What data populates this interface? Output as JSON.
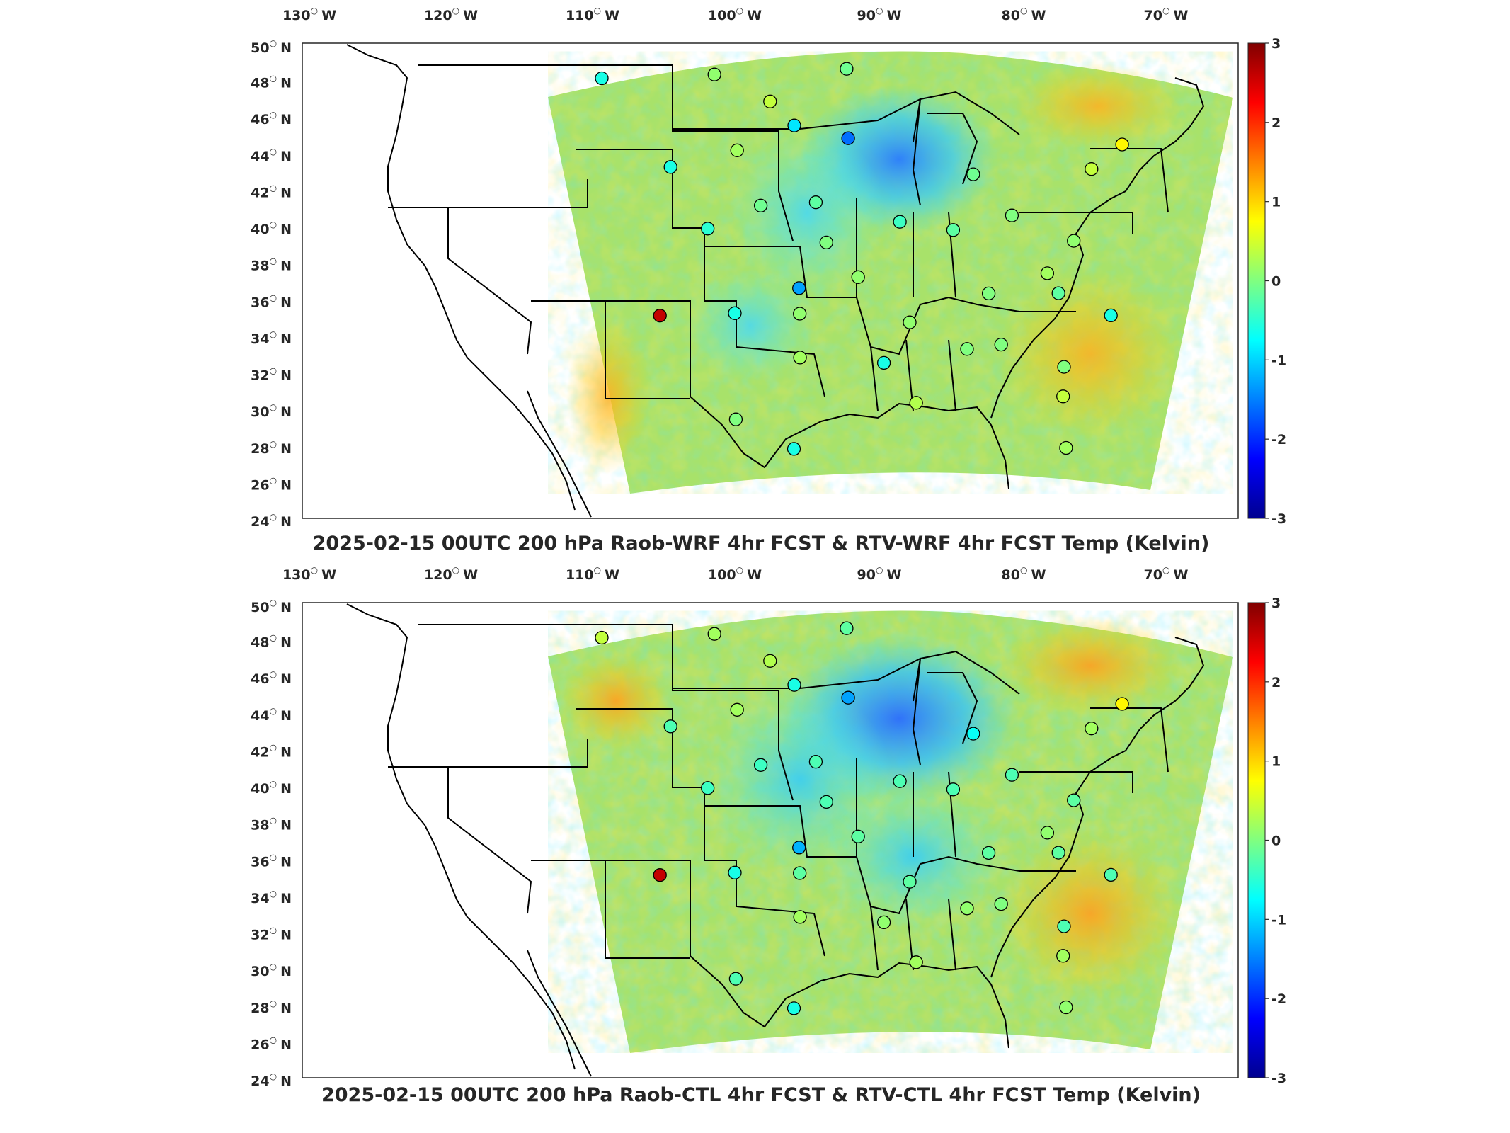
{
  "panels": [
    {
      "id": "top",
      "title": "2025-02-15 00UTC 200 hPa Raob-WRF 4hr FCST & RTV-WRF 4hr FCST Temp (Kelvin)"
    },
    {
      "id": "bottom",
      "title": "2025-02-15 00UTC 200 hPa Raob-CTL 4hr FCST & RTV-CTL 4hr FCST Temp (Kelvin)"
    }
  ],
  "axes": {
    "lon_ticks": [
      {
        "deg": "130",
        "hemi": "W"
      },
      {
        "deg": "120",
        "hemi": "W"
      },
      {
        "deg": "110",
        "hemi": "W"
      },
      {
        "deg": "100",
        "hemi": "W"
      },
      {
        "deg": "90",
        "hemi": "W"
      },
      {
        "deg": "80",
        "hemi": "W"
      },
      {
        "deg": "70",
        "hemi": "W"
      }
    ],
    "lat_ticks": [
      {
        "deg": "50",
        "hemi": "N"
      },
      {
        "deg": "48",
        "hemi": "N"
      },
      {
        "deg": "46",
        "hemi": "N"
      },
      {
        "deg": "44",
        "hemi": "N"
      },
      {
        "deg": "42",
        "hemi": "N"
      },
      {
        "deg": "40",
        "hemi": "N"
      },
      {
        "deg": "38",
        "hemi": "N"
      },
      {
        "deg": "36",
        "hemi": "N"
      },
      {
        "deg": "34",
        "hemi": "N"
      },
      {
        "deg": "32",
        "hemi": "N"
      },
      {
        "deg": "30",
        "hemi": "N"
      },
      {
        "deg": "28",
        "hemi": "N"
      },
      {
        "deg": "26",
        "hemi": "N"
      },
      {
        "deg": "24",
        "hemi": "N"
      }
    ]
  },
  "colorbar": {
    "range": [
      -3,
      3
    ],
    "tick_labels": [
      "3",
      "2",
      "1",
      "0",
      "-1",
      "-2",
      "-3"
    ],
    "colormap": "jet",
    "colors": [
      "#00008f",
      "#0000ff",
      "#0080ff",
      "#00ffff",
      "#80ff80",
      "#ffff00",
      "#ff8000",
      "#ff0000",
      "#800000"
    ]
  },
  "map": {
    "field_background": "#a8e26a",
    "region": "CONUS Lambert conformal, 200 hPa temperature difference",
    "raob_stations": [
      {
        "lon": -117.4,
        "lat": 47.7,
        "top": -0.6,
        "bottom": 0.4
      },
      {
        "lon": -106.6,
        "lat": 48.2,
        "top": 0.1,
        "bottom": 0.2
      },
      {
        "lon": -100.8,
        "lat": 46.8,
        "top": 0.4,
        "bottom": 0.3
      },
      {
        "lon": -98.4,
        "lat": 45.5,
        "top": -0.9,
        "bottom": -0.6
      },
      {
        "lon": -93.6,
        "lat": 44.8,
        "top": -1.6,
        "bottom": -1.3
      },
      {
        "lon": -93.4,
        "lat": 48.6,
        "top": -0.1,
        "bottom": -0.2
      },
      {
        "lon": -108.5,
        "lat": 43.1,
        "top": -0.6,
        "bottom": -0.3
      },
      {
        "lon": -103.2,
        "lat": 44.1,
        "top": 0.2,
        "bottom": 0.2
      },
      {
        "lon": -100.7,
        "lat": 41.1,
        "top": -0.1,
        "bottom": -0.4
      },
      {
        "lon": -96.4,
        "lat": 41.3,
        "top": -0.2,
        "bottom": -0.3
      },
      {
        "lon": -104.5,
        "lat": 39.8,
        "top": -0.5,
        "bottom": -0.4
      },
      {
        "lon": -95.6,
        "lat": 39.1,
        "top": 0.0,
        "bottom": -0.3
      },
      {
        "lon": -97.5,
        "lat": 36.6,
        "top": -1.3,
        "bottom": -1.2
      },
      {
        "lon": -97.4,
        "lat": 35.2,
        "top": 0.1,
        "bottom": -0.2
      },
      {
        "lon": -101.7,
        "lat": 35.2,
        "top": -0.6,
        "bottom": -0.6
      },
      {
        "lon": -106.6,
        "lat": 35.0,
        "top": 2.6,
        "bottom": 2.6
      },
      {
        "lon": -93.4,
        "lat": 37.2,
        "top": 0.1,
        "bottom": -0.2
      },
      {
        "lon": -90.0,
        "lat": 40.2,
        "top": -0.4,
        "bottom": -0.3
      },
      {
        "lon": -86.1,
        "lat": 39.7,
        "top": -0.2,
        "bottom": -0.3
      },
      {
        "lon": -81.4,
        "lat": 40.4,
        "top": 0.0,
        "bottom": -0.3
      },
      {
        "lon": -83.5,
        "lat": 42.7,
        "top": -0.1,
        "bottom": -0.7
      },
      {
        "lon": -73.8,
        "lat": 42.7,
        "top": 0.4,
        "bottom": 0.2
      },
      {
        "lon": -70.3,
        "lat": 43.9,
        "top": 0.8,
        "bottom": 0.8
      },
      {
        "lon": -77.5,
        "lat": 38.9,
        "top": 0.1,
        "bottom": -0.2
      },
      {
        "lon": -80.2,
        "lat": 37.2,
        "top": 0.2,
        "bottom": 0.1
      },
      {
        "lon": -79.9,
        "lat": 36.1,
        "top": -0.2,
        "bottom": -0.2
      },
      {
        "lon": -77.0,
        "lat": 34.8,
        "top": -0.6,
        "bottom": -0.3
      },
      {
        "lon": -84.6,
        "lat": 36.2,
        "top": 0.0,
        "bottom": -0.2
      },
      {
        "lon": -86.8,
        "lat": 33.2,
        "top": 0.0,
        "bottom": 0.1
      },
      {
        "lon": -84.6,
        "lat": 33.4,
        "top": 0.0,
        "bottom": 0.0
      },
      {
        "lon": -81.1,
        "lat": 32.1,
        "top": 0.0,
        "bottom": -0.3
      },
      {
        "lon": -90.2,
        "lat": 34.7,
        "top": 0.1,
        "bottom": -0.2
      },
      {
        "lon": -92.1,
        "lat": 32.5,
        "top": -0.6,
        "bottom": 0.1
      },
      {
        "lon": -97.3,
        "lat": 32.8,
        "top": 0.2,
        "bottom": 0.2
      },
      {
        "lon": -100.9,
        "lat": 29.4,
        "top": 0.0,
        "bottom": -0.3
      },
      {
        "lon": -97.5,
        "lat": 27.8,
        "top": -0.6,
        "bottom": -0.6
      },
      {
        "lon": -90.4,
        "lat": 30.3,
        "top": 0.3,
        "bottom": 0.2
      },
      {
        "lon": -81.7,
        "lat": 30.5,
        "top": 0.4,
        "bottom": 0.2
      },
      {
        "lon": -82.4,
        "lat": 27.7,
        "top": 0.2,
        "bottom": 0.1
      }
    ]
  }
}
